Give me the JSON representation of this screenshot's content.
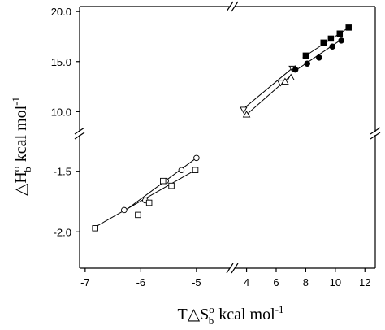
{
  "chart_data": {
    "type": "scatter",
    "title": "",
    "grid": false,
    "legend": "none",
    "xlabel": {
      "main": "T△S",
      "sup": "o",
      "sub": "b",
      "unit": "kcal mol",
      "unit_sup": "-1"
    },
    "ylabel": {
      "main": "△H",
      "sup": "o",
      "sub": "b",
      "unit": "kcal mol",
      "unit_sup": "-1"
    },
    "x_segments": [
      {
        "range": [
          -7.1,
          -4.4
        ],
        "ticks": [
          -7,
          -6,
          -5
        ],
        "tick_labels": [
          "-7",
          "-6",
          "-5"
        ]
      },
      {
        "range": [
          3.2,
          12.7
        ],
        "ticks": [
          4,
          6,
          8,
          10,
          12
        ],
        "tick_labels": [
          "4",
          "6",
          "8",
          "10",
          "12"
        ]
      }
    ],
    "y_segments": [
      {
        "range": [
          -2.3,
          -1.2
        ],
        "ticks": [
          -2.0,
          -1.5
        ],
        "tick_labels": [
          "-2.0",
          "-1.5"
        ]
      },
      {
        "range": [
          8.0,
          20.5
        ],
        "ticks": [
          10.0,
          15.0,
          20.0
        ],
        "tick_labels": [
          "10.0",
          "15.0",
          "20.0"
        ]
      }
    ],
    "series": [
      {
        "marker": "open-circle",
        "x": [
          -6.3,
          -5.92,
          -5.55,
          -5.27,
          -5.0
        ],
        "y": [
          -1.82,
          -1.74,
          -1.58,
          -1.49,
          -1.39
        ],
        "fit": [
          [
            -6.3,
            -1.83
          ],
          [
            -5.0,
            -1.39
          ]
        ]
      },
      {
        "marker": "open-square",
        "x": [
          -6.82,
          -6.05,
          -5.85,
          -5.6,
          -5.45,
          -5.02
        ],
        "y": [
          -1.97,
          -1.86,
          -1.76,
          -1.58,
          -1.62,
          -1.49
        ],
        "fit": [
          [
            -6.82,
            -1.96
          ],
          [
            -5.02,
            -1.49
          ]
        ]
      },
      {
        "marker": "open-triangle-down",
        "x": [
          3.8,
          6.3,
          7.1
        ],
        "y": [
          10.2,
          12.9,
          14.3
        ],
        "fit": [
          [
            3.8,
            10.3
          ],
          [
            7.3,
            14.6
          ]
        ]
      },
      {
        "marker": "open-triangle-up",
        "x": [
          4.0,
          6.6,
          7.0
        ],
        "y": [
          9.7,
          13.0,
          13.4
        ],
        "fit": [
          [
            4.0,
            9.7
          ],
          [
            7.0,
            13.6
          ]
        ]
      },
      {
        "marker": "filled-circle",
        "x": [
          7.3,
          8.1,
          8.9,
          9.8,
          10.4
        ],
        "y": [
          14.2,
          14.8,
          15.4,
          16.5,
          17.1
        ],
        "fit": [
          [
            7.3,
            14.1
          ],
          [
            10.4,
            17.2
          ]
        ]
      },
      {
        "marker": "filled-square",
        "x": [
          8.0,
          9.2,
          9.7,
          10.3,
          10.9
        ],
        "y": [
          15.6,
          16.9,
          17.3,
          17.8,
          18.4
        ],
        "fit": [
          [
            7.8,
            15.4
          ],
          [
            10.9,
            18.4
          ]
        ]
      }
    ]
  }
}
